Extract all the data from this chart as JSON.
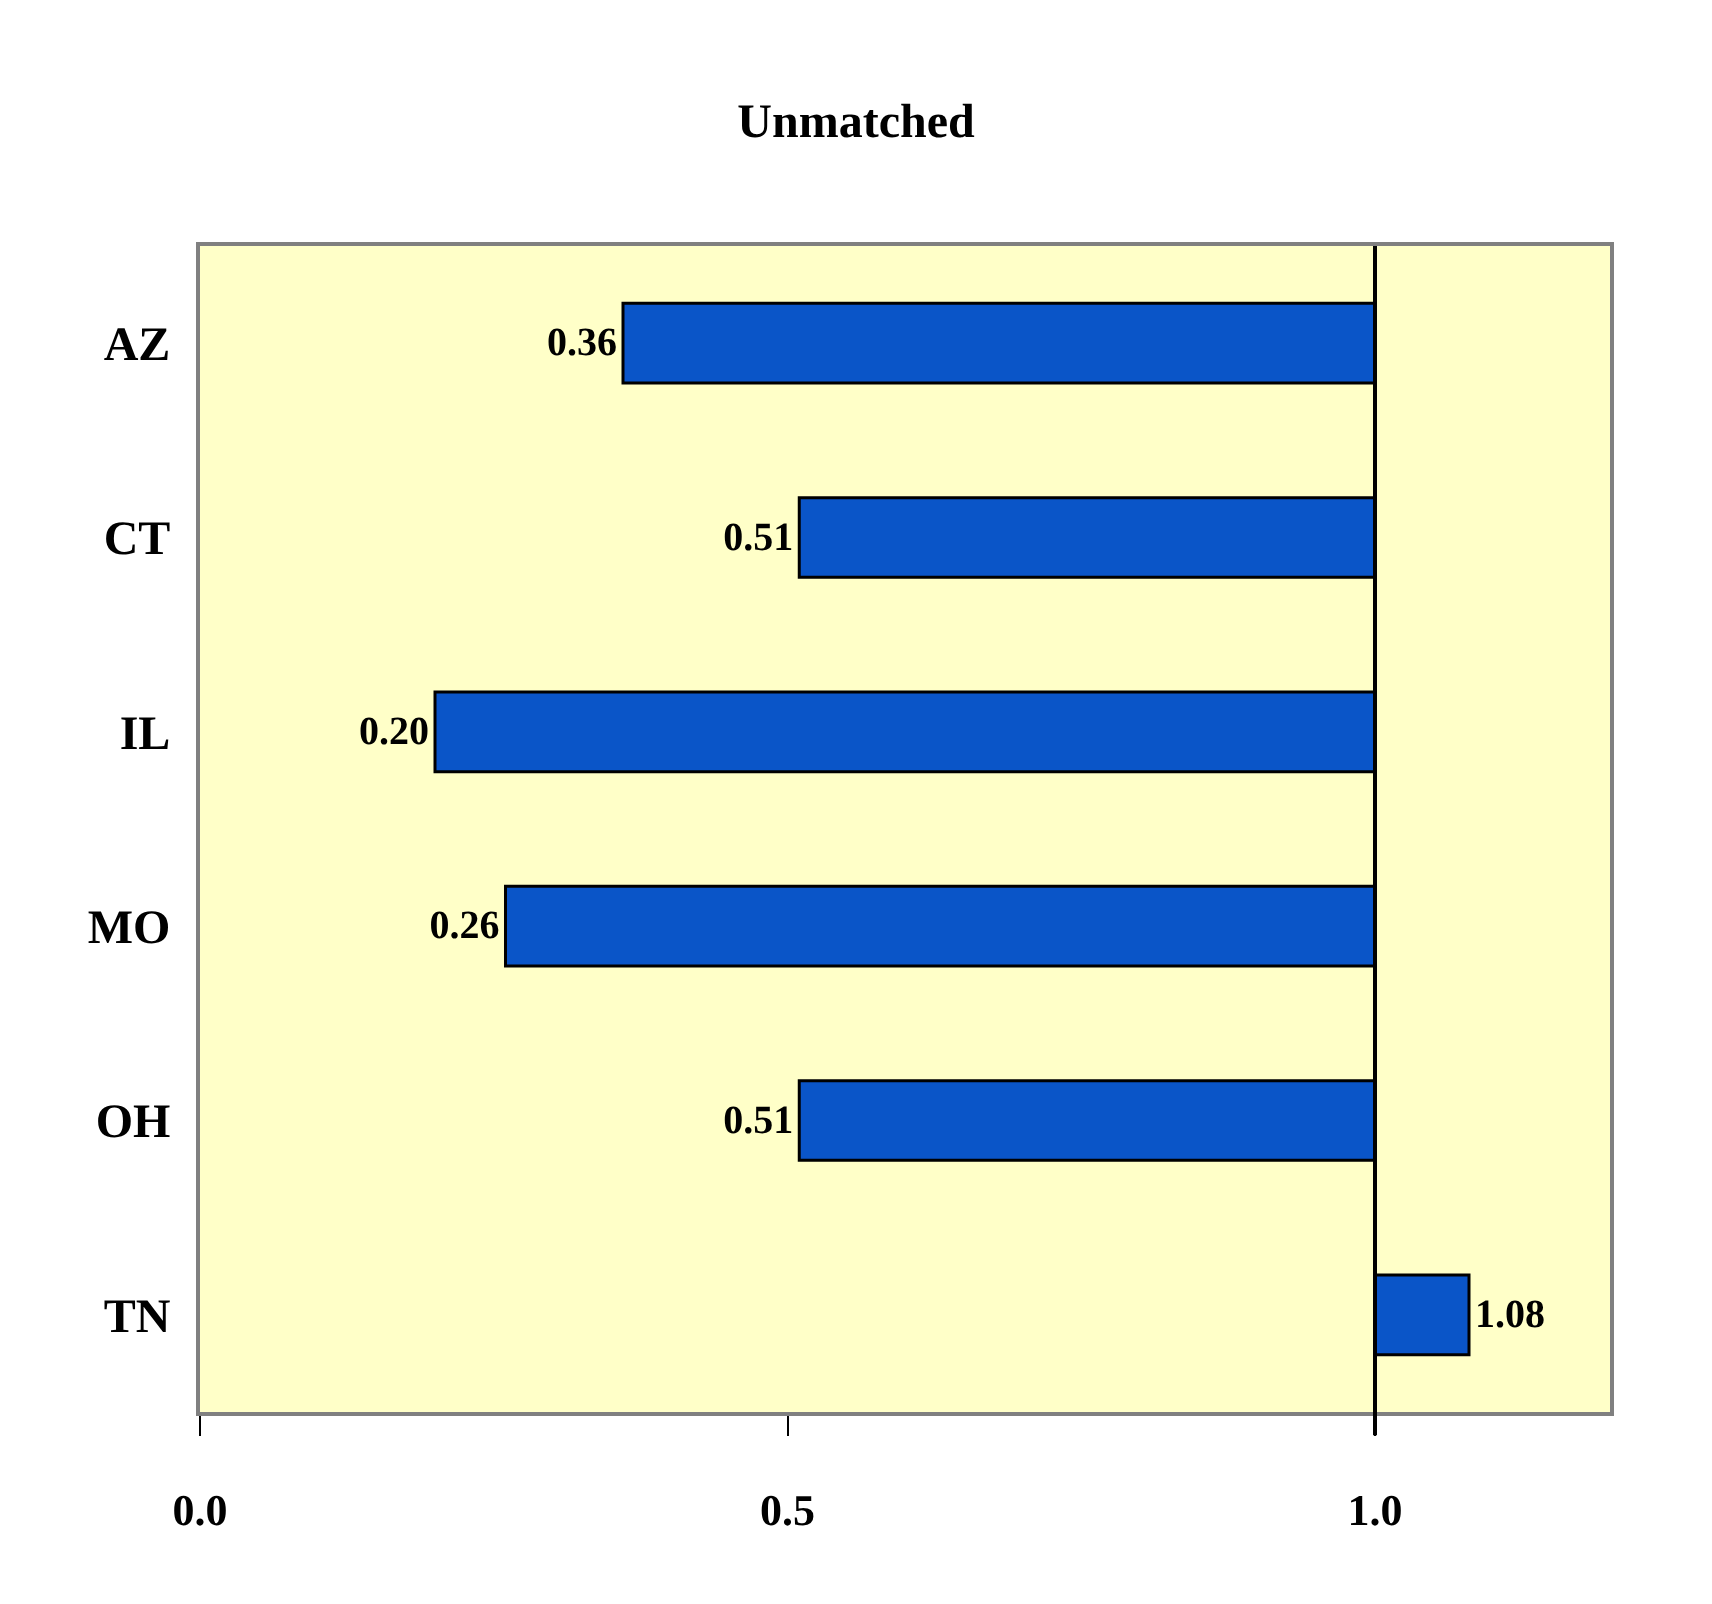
{
  "chart_data": {
    "type": "bar",
    "orientation": "horizontal",
    "title": "Unmatched",
    "categories": [
      "AZ",
      "CT",
      "IL",
      "MO",
      "OH",
      "TN"
    ],
    "base": [
      1.0,
      1.0,
      1.0,
      1.0,
      1.0,
      1.0
    ],
    "values": [
      -0.64,
      -0.49,
      -0.8,
      -0.74,
      -0.49,
      0.08
    ],
    "value_labels": [
      "0.36",
      "0.51",
      "0.20",
      "0.26",
      "0.51",
      "1.08"
    ],
    "color": "#0a55c8",
    "xlim": [
      0,
      1.2
    ],
    "xticks": [
      {
        "value": 0,
        "label": "0.0"
      },
      {
        "value": 0.5,
        "label": "0.5"
      },
      {
        "value": 1.0,
        "label": "1.0"
      }
    ],
    "ref_lines": [
      {
        "axis": "x",
        "value": 1.0,
        "color": "#000000"
      }
    ]
  }
}
